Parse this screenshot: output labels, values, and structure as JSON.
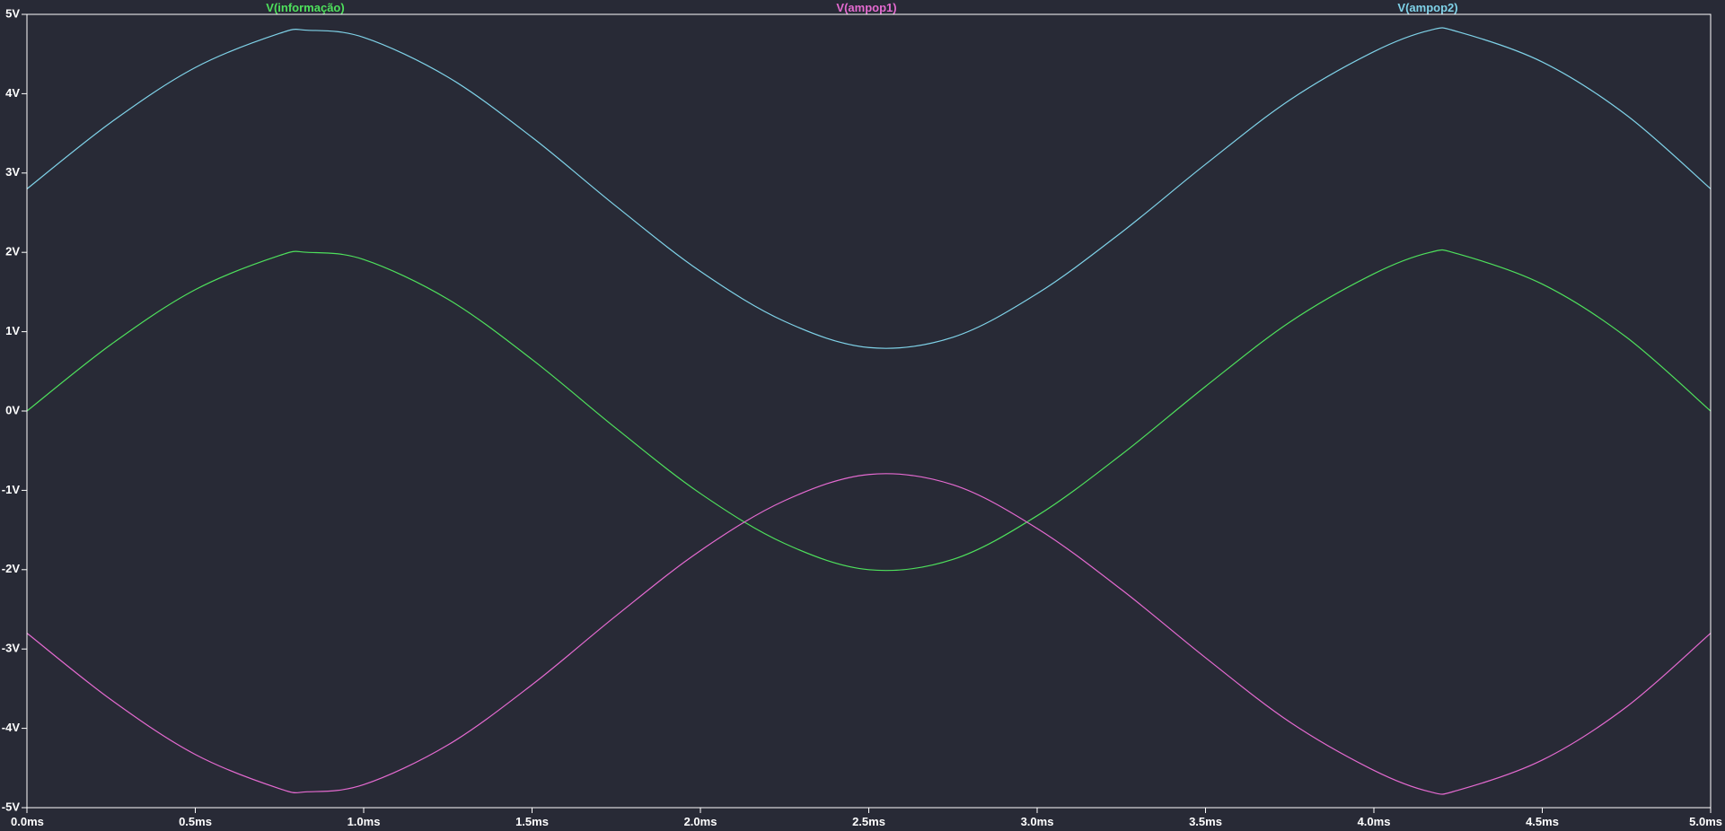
{
  "chart_data": {
    "type": "line",
    "title": "",
    "xlabel": "",
    "ylabel": "",
    "xlim": [
      0,
      5
    ],
    "ylim": [
      -5,
      5
    ],
    "x_unit": "ms",
    "y_unit": "V",
    "x_ticks": [
      "0.0ms",
      "0.5ms",
      "1.0ms",
      "1.5ms",
      "2.0ms",
      "2.5ms",
      "3.0ms",
      "3.5ms",
      "4.0ms",
      "4.5ms",
      "5.0ms"
    ],
    "y_ticks": [
      "5V",
      "4V",
      "3V",
      "2V",
      "1V",
      "0V",
      "-1V",
      "-2V",
      "-3V",
      "-4V",
      "-5V"
    ],
    "grid": false,
    "legend_placement": "top",
    "background": "#282a36",
    "frame_color": "#ffffff",
    "series": [
      {
        "name": "V(informação)",
        "color": "#4ee05c",
        "x": [
          0.0,
          0.25,
          0.5,
          0.75,
          0.833,
          1.0,
          1.25,
          1.5,
          1.75,
          2.0,
          2.25,
          2.5,
          2.75,
          3.0,
          3.25,
          3.5,
          3.75,
          4.0,
          4.167,
          4.25,
          4.5,
          4.75,
          5.0
        ],
        "y": [
          0.0,
          0.84,
          1.53,
          1.96,
          2.0,
          1.91,
          1.41,
          0.65,
          -0.22,
          -1.04,
          -1.67,
          -2.0,
          -1.87,
          -1.32,
          -0.55,
          0.31,
          1.12,
          1.73,
          2.0,
          1.98,
          1.6,
          0.93,
          0.0
        ]
      },
      {
        "name": "V(ampop1)",
        "color": "#e46ad0",
        "x": [
          0.0,
          0.25,
          0.5,
          0.75,
          0.833,
          1.0,
          1.25,
          1.5,
          1.75,
          2.0,
          2.25,
          2.5,
          2.75,
          3.0,
          3.25,
          3.5,
          3.75,
          4.0,
          4.167,
          4.25,
          4.5,
          4.75,
          5.0
        ],
        "y": [
          -2.8,
          -3.64,
          -4.33,
          -4.76,
          -4.8,
          -4.71,
          -4.21,
          -3.45,
          -2.58,
          -1.76,
          -1.13,
          -0.8,
          -0.93,
          -1.48,
          -2.25,
          -3.11,
          -3.92,
          -4.53,
          -4.8,
          -4.78,
          -4.4,
          -3.73,
          -2.8
        ]
      },
      {
        "name": "V(ampop2)",
        "color": "#7fd2e8",
        "x": [
          0.0,
          0.25,
          0.5,
          0.75,
          0.833,
          1.0,
          1.25,
          1.5,
          1.75,
          2.0,
          2.25,
          2.5,
          2.75,
          3.0,
          3.25,
          3.5,
          3.75,
          4.0,
          4.167,
          4.25,
          4.5,
          4.75,
          5.0
        ],
        "y": [
          2.8,
          3.64,
          4.33,
          4.76,
          4.8,
          4.71,
          4.21,
          3.45,
          2.58,
          1.76,
          1.13,
          0.8,
          0.93,
          1.48,
          2.25,
          3.11,
          3.92,
          4.53,
          4.8,
          4.78,
          4.4,
          3.73,
          2.8
        ]
      }
    ]
  }
}
